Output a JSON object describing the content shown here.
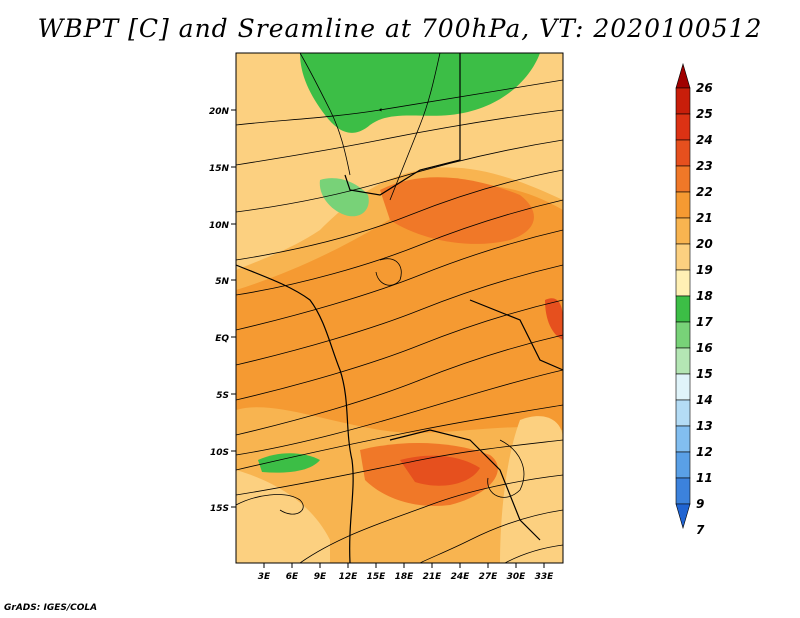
{
  "title": "WBPT [C] and Sreamline at 700hPa, VT: 2020100512",
  "credit": "GrADS: IGES/COLA",
  "map": {
    "lat_labels": [
      "20N",
      "15N",
      "10N",
      "5N",
      "EQ",
      "5S",
      "10S",
      "15S"
    ],
    "lon_labels": [
      "3E",
      "6E",
      "9E",
      "12E",
      "15E",
      "18E",
      "21E",
      "24E",
      "27E",
      "30E",
      "33E"
    ]
  },
  "colorbar": {
    "levels": [
      "26",
      "25",
      "24",
      "23",
      "22",
      "21",
      "20",
      "19",
      "18",
      "17",
      "16",
      "15",
      "14",
      "13",
      "12",
      "11",
      "9",
      "7"
    ],
    "colors": [
      "#a00000",
      "#c81e0a",
      "#dc3214",
      "#e6501e",
      "#f07828",
      "#f59a32",
      "#f8b450",
      "#fcd080",
      "#fff0b4",
      "#3cbe46",
      "#78d278",
      "#b4e6b4",
      "#e0f4fa",
      "#b4dcf5",
      "#82bef0",
      "#5aa0e6",
      "#3c82dc",
      "#2064d2"
    ]
  },
  "chart_data": {
    "type": "map",
    "title": "WBPT [C] and Sreamline at 700hPa, VT: 2020100512",
    "variable": "Wet-bulb potential temperature (C) shaded, 700hPa streamlines",
    "valid_time": "2020100512",
    "lon_ticks": [
      3,
      6,
      9,
      12,
      15,
      18,
      21,
      24,
      27,
      30,
      33
    ],
    "lat_ticks": [
      20,
      15,
      10,
      5,
      0,
      -5,
      -10,
      -15
    ],
    "contour_levels": [
      7,
      9,
      11,
      12,
      13,
      14,
      15,
      16,
      17,
      18,
      19,
      20,
      21,
      22,
      23,
      24,
      25,
      26
    ]
  }
}
